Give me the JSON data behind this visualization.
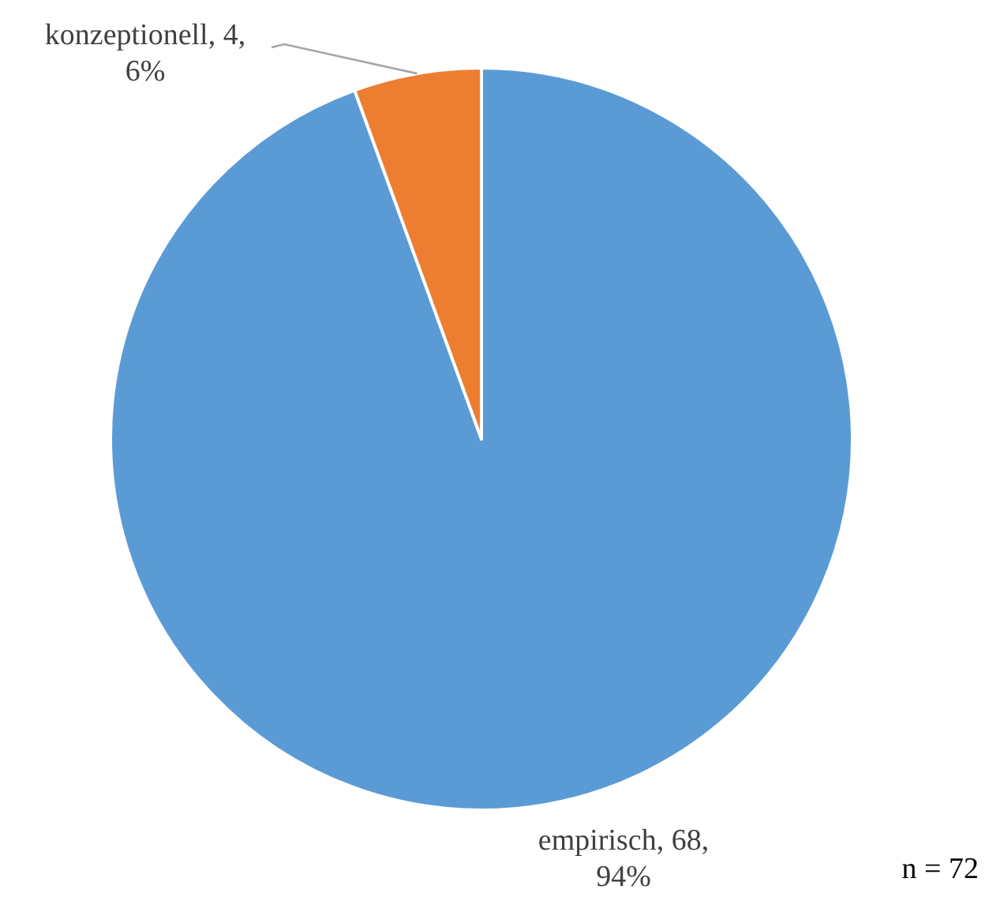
{
  "chart_data": {
    "type": "pie",
    "categories": [
      "empirisch",
      "konzeptionell"
    ],
    "values": [
      68,
      4
    ],
    "colors": [
      "#5b9bd5",
      "#ed7d31"
    ],
    "value_labels": [
      "68, 94%",
      "4, 6%"
    ],
    "annotations": [
      "n = 72"
    ]
  }
}
